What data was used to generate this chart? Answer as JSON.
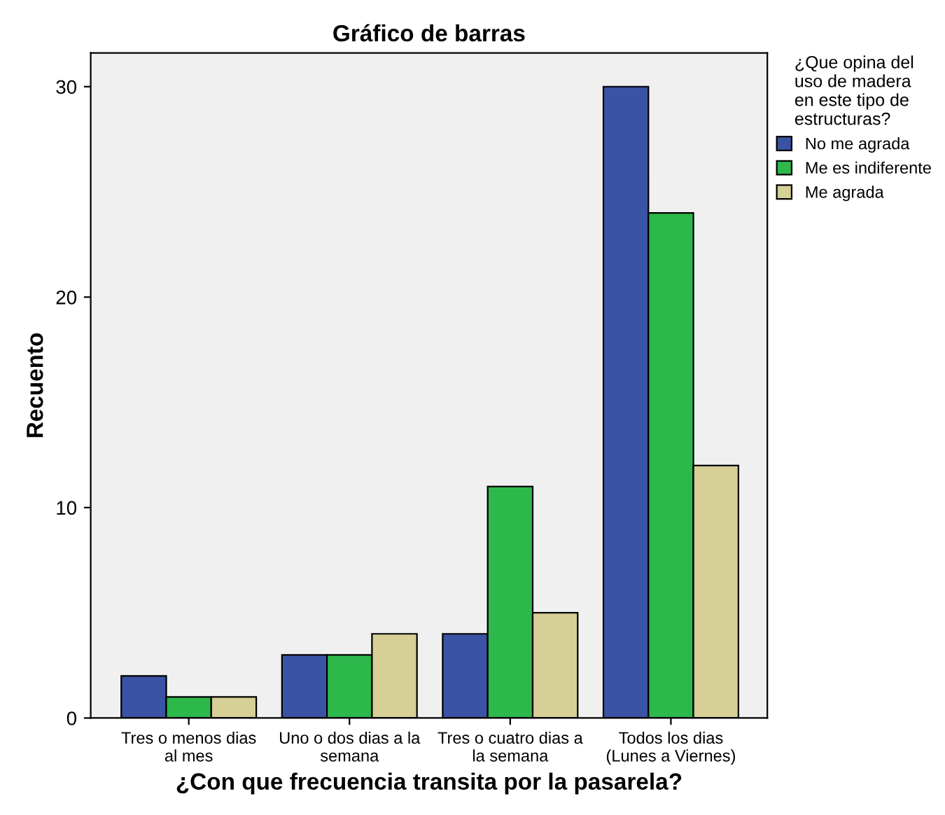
{
  "chart_data": {
    "type": "bar",
    "title": "Gráfico de barras",
    "xlabel": "¿Con que frecuencia transita por la pasarela?",
    "ylabel": "Recuento",
    "legend_title": "¿Que opina del\nuso de madera\nen este tipo de\nestructuras?",
    "legend": "top right",
    "grid": false,
    "categories": [
      "Tres o menos dias\nal mes",
      "Uno o dos dias a la\nsemana",
      "Tres o cuatro dias a\nla semana",
      "Todos los dias\n(Lunes a Viernes)"
    ],
    "series": [
      {
        "name": "No me agrada",
        "color": "#3a53a4",
        "values": [
          2,
          3,
          4,
          30
        ]
      },
      {
        "name": "Me es indiferente",
        "color": "#2db84b",
        "values": [
          1,
          3,
          11,
          24
        ]
      },
      {
        "name": "Me agrada",
        "color": "#d6cf96",
        "values": [
          1,
          4,
          5,
          12
        ]
      }
    ],
    "ylim": [
      0,
      31.6
    ],
    "yticks": [
      0,
      10,
      20,
      30
    ]
  }
}
